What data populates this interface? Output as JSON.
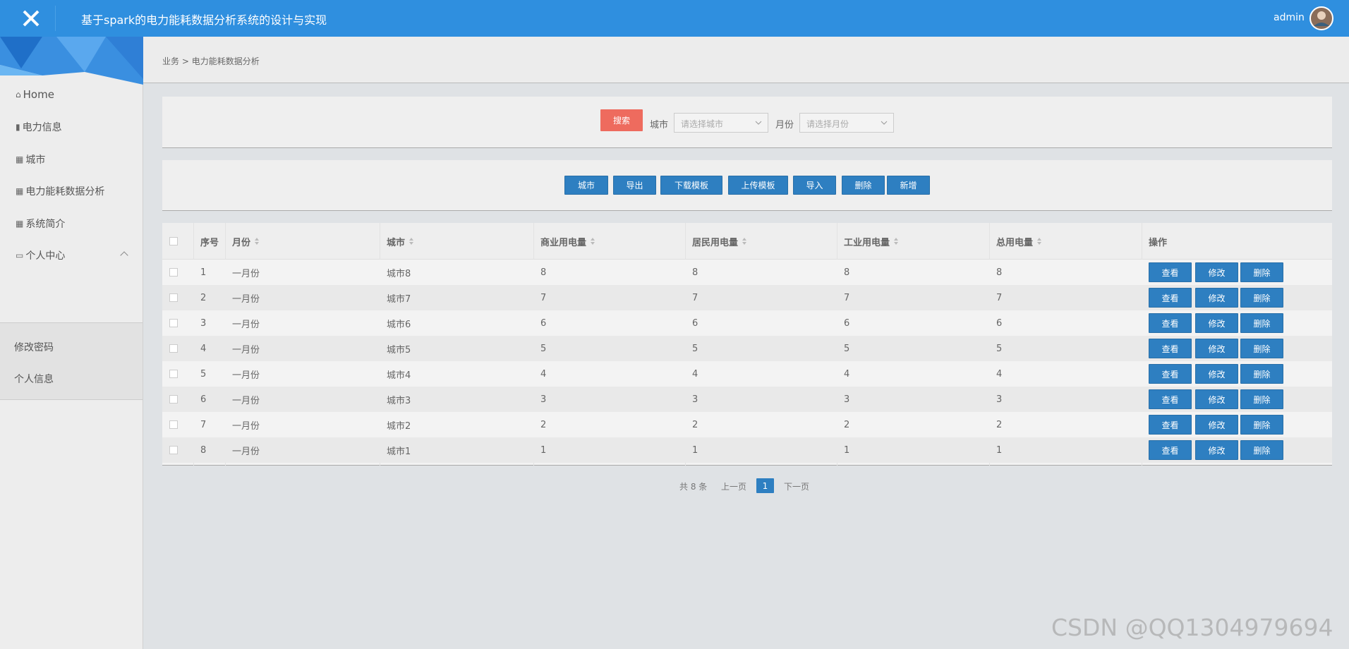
{
  "header": {
    "title": "基于spark的电力能耗数据分析系统的设计与实现",
    "user": "admin"
  },
  "sidebar": {
    "menu": [
      "Home",
      "电力信息",
      "城市",
      "电力能耗数据分析",
      "系统简介",
      "个人中心"
    ],
    "submenu": [
      "修改密码",
      "个人信息"
    ]
  },
  "breadcrumb": [
    "业务",
    "电力能耗数据分析"
  ],
  "search": {
    "button": "搜索",
    "city_label": "城市",
    "city_placeholder": "请选择城市",
    "month_label": "月份",
    "month_placeholder": "请选择月份"
  },
  "toolbar": [
    "城市",
    "导出",
    "下载模板",
    "上传模板",
    "导入",
    "删除",
    "新增"
  ],
  "table": {
    "columns": [
      "序号",
      "月份",
      "城市",
      "商业用电量",
      "居民用电量",
      "工业用电量",
      "总用电量",
      "操作"
    ],
    "rows": [
      [
        "1",
        "一月份",
        "城市8",
        "8",
        "8",
        "8",
        "8"
      ],
      [
        "2",
        "一月份",
        "城市7",
        "7",
        "7",
        "7",
        "7"
      ],
      [
        "3",
        "一月份",
        "城市6",
        "6",
        "6",
        "6",
        "6"
      ],
      [
        "4",
        "一月份",
        "城市5",
        "5",
        "5",
        "5",
        "5"
      ],
      [
        "5",
        "一月份",
        "城市4",
        "4",
        "4",
        "4",
        "4"
      ],
      [
        "6",
        "一月份",
        "城市3",
        "3",
        "3",
        "3",
        "3"
      ],
      [
        "7",
        "一月份",
        "城市2",
        "2",
        "2",
        "2",
        "2"
      ],
      [
        "8",
        "一月份",
        "城市1",
        "1",
        "1",
        "1",
        "1"
      ]
    ],
    "actions": [
      "查看",
      "修改",
      "删除"
    ]
  },
  "pagination": {
    "total": "共 8 条",
    "prev": "上一页",
    "current": "1",
    "next": "下一页"
  },
  "watermark": "CSDN @QQ1304979694"
}
